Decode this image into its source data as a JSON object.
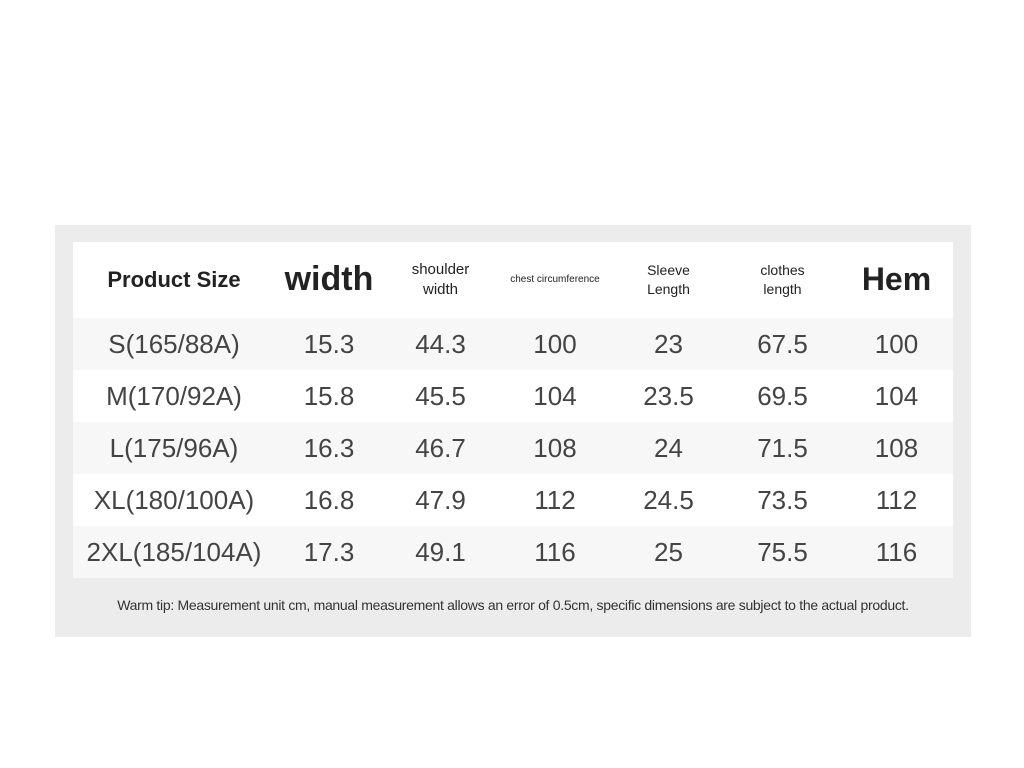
{
  "table": {
    "headers": [
      "Product Size",
      "width",
      "shoulder width",
      "chest circumference",
      "Sleeve Length",
      "clothes length",
      "Hem"
    ],
    "rows": [
      [
        "S(165/88A)",
        "15.3",
        "44.3",
        "100",
        "23",
        "67.5",
        "100"
      ],
      [
        "M(170/92A)",
        "15.8",
        "45.5",
        "104",
        "23.5",
        "69.5",
        "104"
      ],
      [
        "L(175/96A)",
        "16.3",
        "46.7",
        "108",
        "24",
        "71.5",
        "108"
      ],
      [
        "XL(180/100A)",
        "16.8",
        "47.9",
        "112",
        "24.5",
        "73.5",
        "112"
      ],
      [
        "2XL(185/104A)",
        "17.3",
        "49.1",
        "116",
        "25",
        "75.5",
        "116"
      ]
    ]
  },
  "footer": {
    "tip": "Warm tip: Measurement unit cm, manual measurement allows an error of 0.5cm, specific dimensions are subject to the actual product."
  }
}
